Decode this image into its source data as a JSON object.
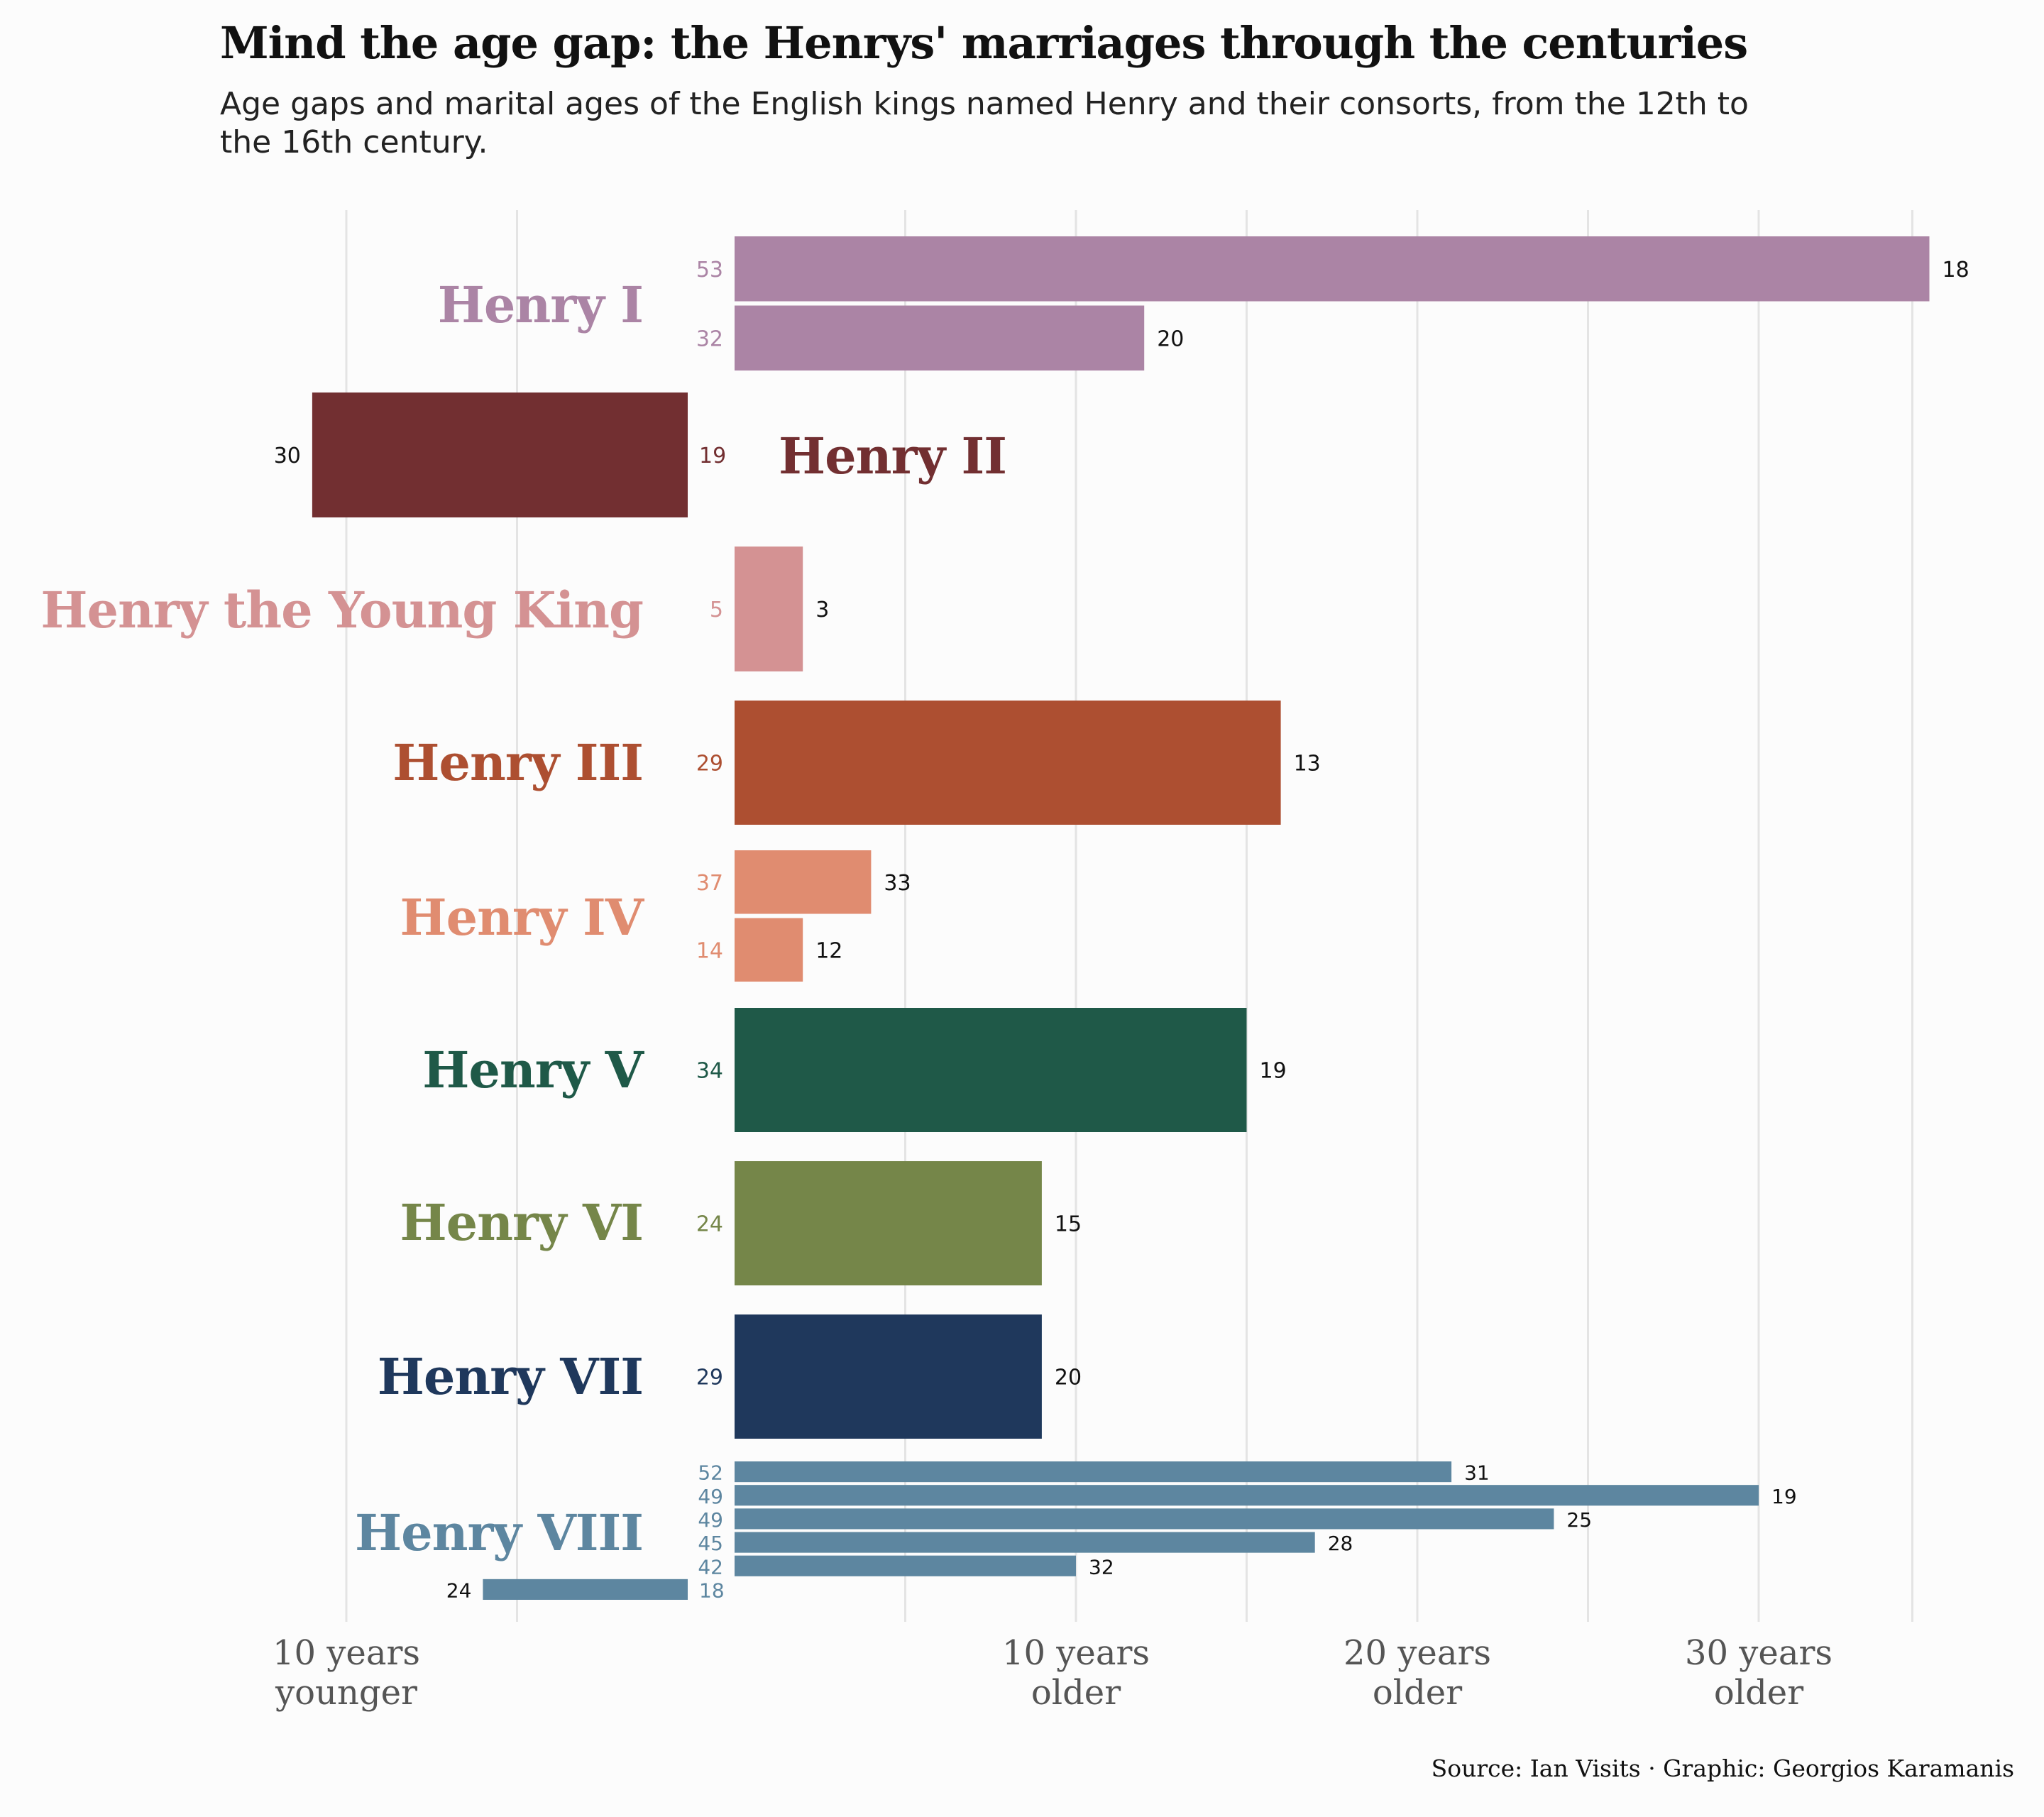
{
  "title": "Mind the age gap: the Henrys' marriages through the centuries",
  "subtitle": "Age gaps and marital ages of the English kings named Henry and their consorts, from the 12th to the 16th century.",
  "source": "Source: Ian Visits · Graphic: Georgios Karamanis",
  "chart_data": {
    "type": "bar",
    "orientation": "horizontal",
    "value": "age gap (king's age minus consort's age)",
    "x_ticks": [
      {
        "value": -10,
        "label": [
          "10 years",
          "younger"
        ]
      },
      {
        "value": 10,
        "label": [
          "10 years",
          "older"
        ]
      },
      {
        "value": 20,
        "label": [
          "20 years",
          "older"
        ]
      },
      {
        "value": 30,
        "label": [
          "30 years",
          "older"
        ]
      }
    ],
    "xlim": [
      -10.5,
      34.5
    ],
    "grid": true,
    "groups": [
      {
        "king": "Henry I",
        "color": "#ab84a5",
        "marriages": [
          {
            "king_age": 53,
            "consort_age": 18
          },
          {
            "king_age": 32,
            "consort_age": 20
          }
        ]
      },
      {
        "king": "Henry II",
        "color": "#722f31",
        "marriages": [
          {
            "king_age": 19,
            "consort_age": 30
          }
        ]
      },
      {
        "king": "Henry the Young King",
        "color": "#d49293",
        "marriages": [
          {
            "king_age": 5,
            "consort_age": 3
          }
        ]
      },
      {
        "king": "Henry III",
        "color": "#ad4f31",
        "marriages": [
          {
            "king_age": 29,
            "consort_age": 13
          }
        ]
      },
      {
        "king": "Henry IV",
        "color": "#e08c70",
        "marriages": [
          {
            "king_age": 37,
            "consort_age": 33
          },
          {
            "king_age": 14,
            "consort_age": 12
          }
        ]
      },
      {
        "king": "Henry V",
        "color": "#1f5948",
        "marriages": [
          {
            "king_age": 34,
            "consort_age": 19
          }
        ]
      },
      {
        "king": "Henry VI",
        "color": "#758649",
        "marriages": [
          {
            "king_age": 24,
            "consort_age": 15
          }
        ]
      },
      {
        "king": "Henry VII",
        "color": "#1f385c",
        "marriages": [
          {
            "king_age": 29,
            "consort_age": 20
          }
        ]
      },
      {
        "king": "Henry VIII",
        "color": "#5d86a0",
        "marriages": [
          {
            "king_age": 52,
            "consort_age": 31
          },
          {
            "king_age": 49,
            "consort_age": 19
          },
          {
            "king_age": 49,
            "consort_age": 25
          },
          {
            "king_age": 45,
            "consort_age": 28
          },
          {
            "king_age": 42,
            "consort_age": 32
          },
          {
            "king_age": 18,
            "consort_age": 24
          }
        ]
      }
    ]
  }
}
